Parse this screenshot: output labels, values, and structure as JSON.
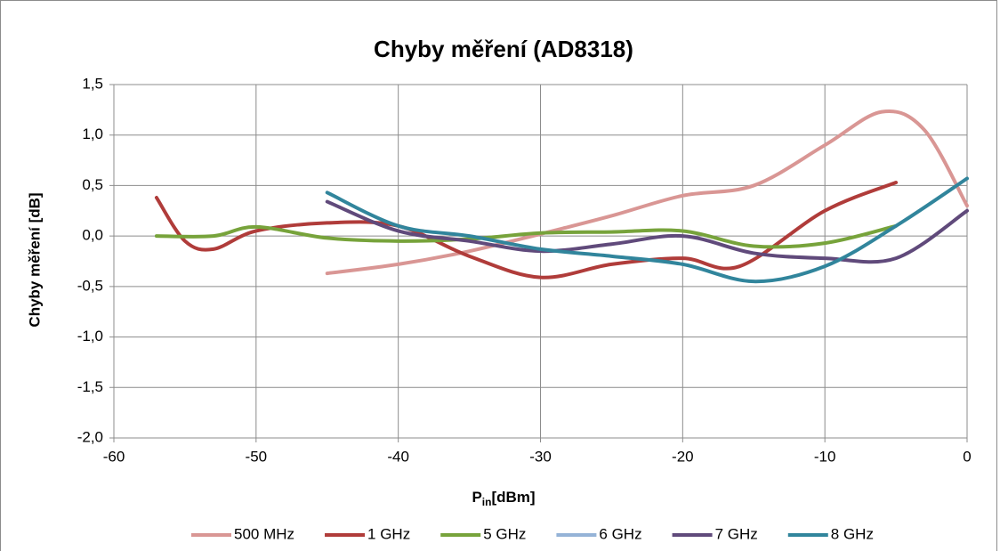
{
  "chart_data": {
    "type": "line",
    "title": "Chyby měření (AD8318)",
    "xlabel": "P",
    "xlabel_subscript": "in",
    "xlabel_suffix": "[dBm]",
    "ylabel": "Chyby měření [dB]",
    "xlim": [
      -60,
      0
    ],
    "xticks": [
      -60,
      -50,
      -40,
      -30,
      -20,
      -10,
      0
    ],
    "ylim": [
      -2,
      1.5
    ],
    "yticks": [
      {
        "value": -2,
        "label": "-2,0"
      },
      {
        "value": -1.5,
        "label": "-1,5"
      },
      {
        "value": -1,
        "label": "-1,0"
      },
      {
        "value": -0.5,
        "label": "-0,5"
      },
      {
        "value": 0,
        "label": "0,0"
      },
      {
        "value": 0.5,
        "label": "0,5"
      },
      {
        "value": 1,
        "label": "1,0"
      },
      {
        "value": 1.5,
        "label": "1,5"
      }
    ],
    "grid": true,
    "legend": "bottom",
    "series": [
      {
        "name": "500 MHz",
        "color": "#d99694",
        "x": [
          -45,
          -40,
          -35,
          -30,
          -25,
          -20,
          -15,
          -10,
          -6,
          -3,
          0
        ],
        "values": [
          -0.37,
          -0.28,
          -0.15,
          0.02,
          0.2,
          0.4,
          0.5,
          0.9,
          1.23,
          1.05,
          0.3
        ]
      },
      {
        "name": "1 GHz",
        "color": "#b03c3a",
        "x": [
          -57,
          -55,
          -53,
          -50,
          -45,
          -40,
          -35,
          -30,
          -25,
          -20,
          -16,
          -10,
          -5
        ],
        "values": [
          0.38,
          -0.05,
          -0.13,
          0.05,
          0.13,
          0.1,
          -0.2,
          -0.41,
          -0.28,
          -0.22,
          -0.3,
          0.25,
          0.53
        ]
      },
      {
        "name": "5 GHz",
        "color": "#77a33b",
        "x": [
          -57,
          -53,
          -50,
          -45,
          -40,
          -35,
          -30,
          -25,
          -20,
          -15,
          -10,
          -5
        ],
        "values": [
          0,
          0,
          0.09,
          -0.02,
          -0.05,
          -0.03,
          0.03,
          0.04,
          0.05,
          -0.1,
          -0.07,
          0.1
        ]
      },
      {
        "name": "6 GHz",
        "color": "#95b3d7",
        "x": [],
        "values": []
      },
      {
        "name": "7 GHz",
        "color": "#604a7b",
        "x": [
          -45,
          -40,
          -35,
          -30,
          -25,
          -20,
          -15,
          -10,
          -5,
          0
        ],
        "values": [
          0.34,
          0.05,
          -0.05,
          -0.15,
          -0.08,
          0,
          -0.17,
          -0.22,
          -0.22,
          0.25
        ]
      },
      {
        "name": "8 GHz",
        "color": "#31859c",
        "x": [
          -45,
          -40,
          -35,
          -30,
          -25,
          -20,
          -15,
          -10,
          -5,
          0
        ],
        "values": [
          0.43,
          0.1,
          0,
          -0.13,
          -0.2,
          -0.28,
          -0.45,
          -0.3,
          0.1,
          0.57
        ]
      }
    ]
  }
}
